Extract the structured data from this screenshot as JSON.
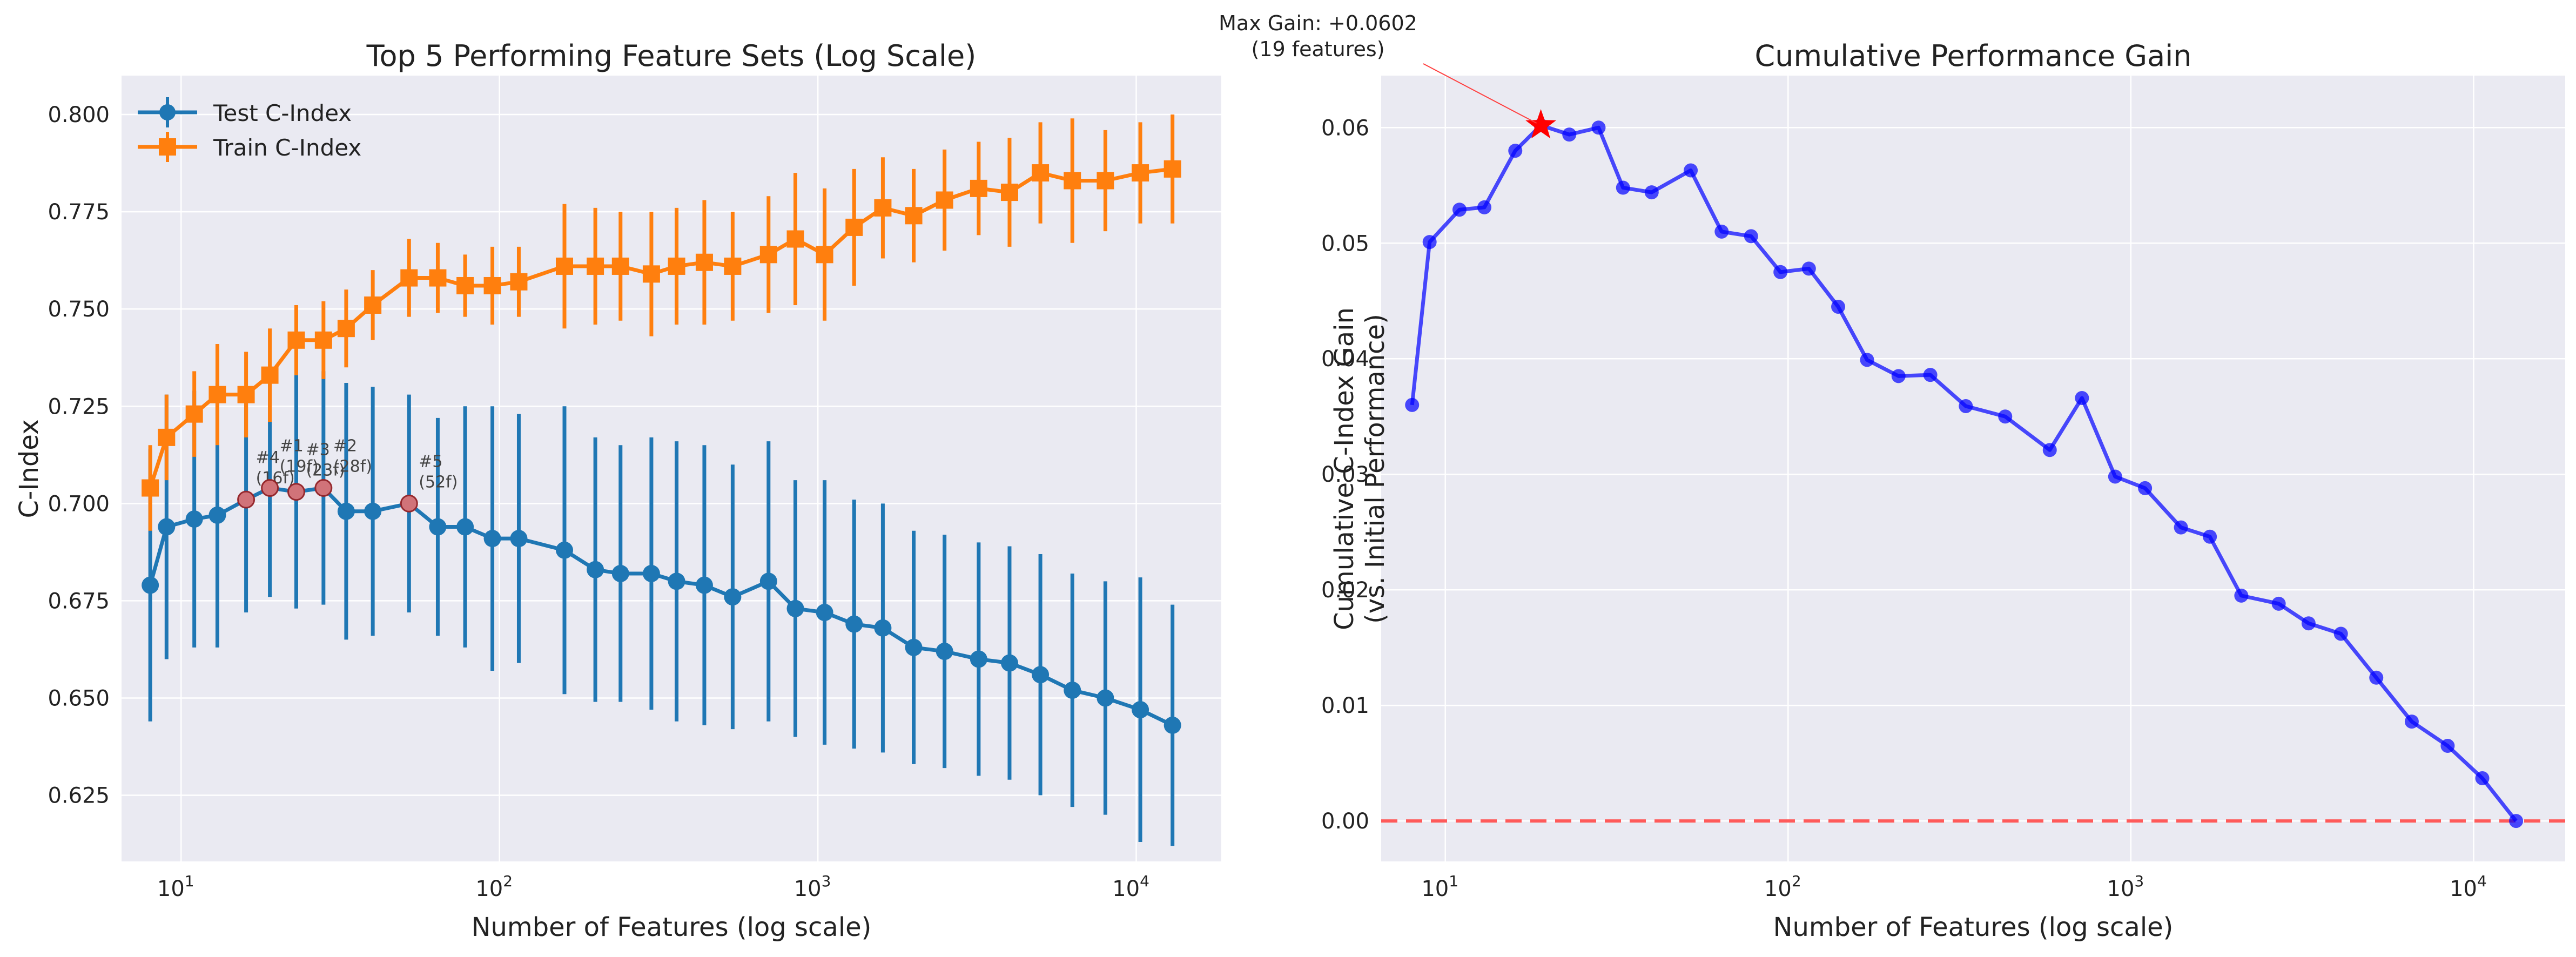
{
  "chart_data": [
    {
      "type": "line",
      "title": "Top 5 Performing Feature Sets (Log Scale)",
      "xlabel": "Number of Features (log scale)",
      "ylabel": "C-Index",
      "xscale": "log",
      "xlim": [
        6.5,
        18500
      ],
      "ylim": [
        0.608,
        0.81
      ],
      "yticks": [
        0.625,
        0.65,
        0.675,
        0.7,
        0.725,
        0.75,
        0.775,
        0.8
      ],
      "xticks": [
        {
          "base": "10",
          "exp": "1",
          "value": 10
        },
        {
          "base": "10",
          "exp": "2",
          "value": 100
        },
        {
          "base": "10",
          "exp": "3",
          "value": 1000
        },
        {
          "base": "10",
          "exp": "4",
          "value": 10000
        }
      ],
      "grid": true,
      "legend": "top-left",
      "x": [
        8,
        9,
        11,
        13,
        16,
        19,
        23,
        28,
        33,
        40,
        52,
        64,
        78,
        95,
        115,
        160,
        200,
        240,
        300,
        360,
        440,
        540,
        700,
        850,
        1050,
        1300,
        1600,
        2000,
        2500,
        3200,
        4000,
        5000,
        6300,
        8000,
        10300,
        13000
      ],
      "series": [
        {
          "name": "Test C-Index",
          "color": "#1f77b4",
          "marker": "circle",
          "values": [
            0.679,
            0.694,
            0.696,
            0.697,
            0.701,
            0.704,
            0.703,
            0.704,
            0.698,
            0.698,
            0.7,
            0.694,
            0.694,
            0.691,
            0.691,
            0.688,
            0.683,
            0.682,
            0.682,
            0.68,
            0.679,
            0.676,
            0.68,
            0.673,
            0.672,
            0.669,
            0.668,
            0.663,
            0.662,
            0.66,
            0.659,
            0.656,
            0.652,
            0.65,
            0.647,
            0.643
          ],
          "errors": [
            0.035,
            0.034,
            0.033,
            0.034,
            0.029,
            0.028,
            0.03,
            0.03,
            0.033,
            0.032,
            0.028,
            0.028,
            0.031,
            0.034,
            0.032,
            0.037,
            0.034,
            0.033,
            0.035,
            0.036,
            0.036,
            0.034,
            0.036,
            0.033,
            0.034,
            0.032,
            0.032,
            0.03,
            0.03,
            0.03,
            0.03,
            0.031,
            0.03,
            0.03,
            0.034,
            0.031
          ]
        },
        {
          "name": "Train C-Index",
          "color": "#ff7f0e",
          "marker": "square",
          "values": [
            0.704,
            0.717,
            0.723,
            0.728,
            0.728,
            0.733,
            0.742,
            0.742,
            0.745,
            0.751,
            0.758,
            0.758,
            0.756,
            0.756,
            0.757,
            0.761,
            0.761,
            0.761,
            0.759,
            0.761,
            0.762,
            0.761,
            0.764,
            0.768,
            0.764,
            0.771,
            0.776,
            0.774,
            0.778,
            0.781,
            0.78,
            0.785,
            0.783,
            0.783,
            0.785,
            0.786
          ],
          "errors": [
            0.011,
            0.011,
            0.011,
            0.013,
            0.011,
            0.012,
            0.009,
            0.01,
            0.01,
            0.009,
            0.01,
            0.009,
            0.008,
            0.01,
            0.009,
            0.016,
            0.015,
            0.014,
            0.016,
            0.015,
            0.016,
            0.014,
            0.015,
            0.017,
            0.017,
            0.015,
            0.013,
            0.012,
            0.013,
            0.012,
            0.014,
            0.013,
            0.016,
            0.013,
            0.013,
            0.014
          ]
        }
      ],
      "highlights": [
        {
          "rank_label": "#4",
          "features_label": "(16f)",
          "x": 16,
          "y": 0.701
        },
        {
          "rank_label": "#1",
          "features_label": "(19f)",
          "x": 19,
          "y": 0.704
        },
        {
          "rank_label": "#3",
          "features_label": "(23f)",
          "x": 23,
          "y": 0.703
        },
        {
          "rank_label": "#2",
          "features_label": "(28f)",
          "x": 28,
          "y": 0.704
        },
        {
          "rank_label": "#5",
          "features_label": "(52f)",
          "x": 52,
          "y": 0.7
        }
      ]
    },
    {
      "type": "line",
      "title": "Cumulative Performance Gain",
      "xlabel": "Number of Features (log scale)",
      "ylabel": "Cumulative C-Index Gain",
      "ylabel2": "(vs. Initial Performance)",
      "xscale": "log",
      "xlim": [
        6.5,
        18500
      ],
      "ylim": [
        -0.0035,
        0.0645
      ],
      "yticks": [
        0.0,
        0.01,
        0.02,
        0.03,
        0.04,
        0.05,
        0.06
      ],
      "ytick_labels": [
        "0.00",
        "0.01",
        "0.02",
        "0.03",
        "0.04",
        "0.05",
        "0.06"
      ],
      "xticks": [
        {
          "base": "10",
          "exp": "1",
          "value": 10
        },
        {
          "base": "10",
          "exp": "2",
          "value": 100
        },
        {
          "base": "10",
          "exp": "3",
          "value": 1000
        },
        {
          "base": "10",
          "exp": "4",
          "value": 10000
        }
      ],
      "grid": true,
      "x": [
        8,
        9,
        11,
        13,
        16,
        19,
        23,
        28,
        33,
        40,
        52,
        64,
        78,
        95,
        115,
        140,
        170,
        210,
        260,
        330,
        430,
        580,
        720,
        900,
        1100,
        1400,
        1700,
        2100,
        2700,
        3300,
        4100,
        5200,
        6600,
        8400,
        10600,
        13300
      ],
      "series": [
        {
          "color": "#0000ff",
          "marker": "circle",
          "values": [
            0.036,
            0.0501,
            0.0529,
            0.0531,
            0.058,
            0.0602,
            0.0594,
            0.06,
            0.0548,
            0.0544,
            0.0563,
            0.051,
            0.0506,
            0.0475,
            0.0478,
            0.0445,
            0.0399,
            0.0385,
            0.0386,
            0.0359,
            0.035,
            0.0321,
            0.0366,
            0.0298,
            0.0288,
            0.0254,
            0.0246,
            0.0195,
            0.0188,
            0.0171,
            0.0162,
            0.0124,
            0.0086,
            0.0065,
            0.0037,
            0.0
          ]
        }
      ],
      "reference_line": {
        "y": 0,
        "color": "#ff5a5a",
        "style": "dashed"
      },
      "max_point": {
        "x": 19,
        "y": 0.0602,
        "color": "#ff0000",
        "marker": "star"
      },
      "annotation": {
        "line1": "Max Gain: +0.0602",
        "line2": "(19 features)"
      }
    }
  ]
}
